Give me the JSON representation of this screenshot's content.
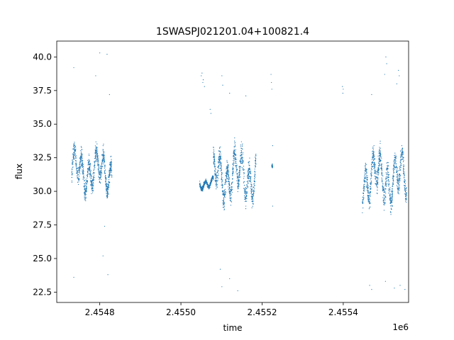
{
  "chart_data": {
    "type": "scatter",
    "title": "1SWASPJ021201.04+100821.4",
    "xlabel": "time",
    "ylabel": "flux",
    "x_offset_label": "1e6",
    "x_ticks": [
      2.4548,
      2.455,
      2.4552,
      2.4554
    ],
    "x_tick_labels": [
      "2.4548",
      "2.4550",
      "2.4552",
      "2.4554"
    ],
    "y_ticks": [
      22.5,
      25.0,
      27.5,
      30.0,
      32.5,
      35.0,
      37.5,
      40.0
    ],
    "y_tick_labels": [
      "22.5",
      "25.0",
      "27.5",
      "30.0",
      "32.5",
      "35.0",
      "37.5",
      "40.0"
    ],
    "xlim": [
      2454694,
      2455561
    ],
    "ylim": [
      21.73,
      41.18
    ],
    "grid": false,
    "marker_color": "#1f77b4",
    "segments": [
      {
        "t_start": 2454731,
        "t_end": 2454830,
        "flux_center": 31.5,
        "flux_spread": 1.9
      },
      {
        "t_start": 2455046,
        "t_end": 2455080,
        "flux_center": 30.6,
        "flux_spread": 0.5
      },
      {
        "t_start": 2455080,
        "t_end": 2455185,
        "flux_center": 31.2,
        "flux_spread": 2.2
      },
      {
        "t_start": 2455224,
        "t_end": 2455226,
        "flux_center": 31.9,
        "flux_spread": 0.4
      },
      {
        "t_start": 2455447,
        "t_end": 2455556,
        "flux_center": 31.0,
        "flux_spread": 2.3
      }
    ],
    "outliers": [
      {
        "x": 2454736,
        "y": 39.2
      },
      {
        "x": 2454800,
        "y": 40.3
      },
      {
        "x": 2454818,
        "y": 40.2
      },
      {
        "x": 2454790,
        "y": 38.6
      },
      {
        "x": 2454824,
        "y": 37.2
      },
      {
        "x": 2454820,
        "y": 23.8
      },
      {
        "x": 2454736,
        "y": 23.6
      },
      {
        "x": 2454808,
        "y": 25.2
      },
      {
        "x": 2454812,
        "y": 27.4
      },
      {
        "x": 2455052,
        "y": 38.8
      },
      {
        "x": 2455055,
        "y": 38.3
      },
      {
        "x": 2455058,
        "y": 37.8
      },
      {
        "x": 2455050,
        "y": 38.6
      },
      {
        "x": 2455054,
        "y": 38.1
      },
      {
        "x": 2455072,
        "y": 36.1
      },
      {
        "x": 2455074,
        "y": 35.8
      },
      {
        "x": 2455101,
        "y": 38.6
      },
      {
        "x": 2455103,
        "y": 37.9
      },
      {
        "x": 2455120,
        "y": 37.3
      },
      {
        "x": 2455160,
        "y": 37.1
      },
      {
        "x": 2455101,
        "y": 22.9
      },
      {
        "x": 2455120,
        "y": 23.5
      },
      {
        "x": 2455140,
        "y": 22.6
      },
      {
        "x": 2455097,
        "y": 24.2
      },
      {
        "x": 2455222,
        "y": 38.7
      },
      {
        "x": 2455223,
        "y": 38.1
      },
      {
        "x": 2455224,
        "y": 37.6
      },
      {
        "x": 2455226,
        "y": 33.4
      },
      {
        "x": 2455226,
        "y": 28.9
      },
      {
        "x": 2455398,
        "y": 37.8
      },
      {
        "x": 2455399,
        "y": 37.3
      },
      {
        "x": 2455400,
        "y": 37.6
      },
      {
        "x": 2455465,
        "y": 23.0
      },
      {
        "x": 2455470,
        "y": 22.7
      },
      {
        "x": 2455470,
        "y": 37.2
      },
      {
        "x": 2455505,
        "y": 40.0
      },
      {
        "x": 2455507,
        "y": 39.5
      },
      {
        "x": 2455502,
        "y": 38.7
      },
      {
        "x": 2455532,
        "y": 38.0
      },
      {
        "x": 2455536,
        "y": 39.0
      },
      {
        "x": 2455538,
        "y": 38.6
      },
      {
        "x": 2455552,
        "y": 22.7
      },
      {
        "x": 2455526,
        "y": 22.8
      },
      {
        "x": 2455540,
        "y": 23.0
      },
      {
        "x": 2455504,
        "y": 23.3
      }
    ]
  }
}
